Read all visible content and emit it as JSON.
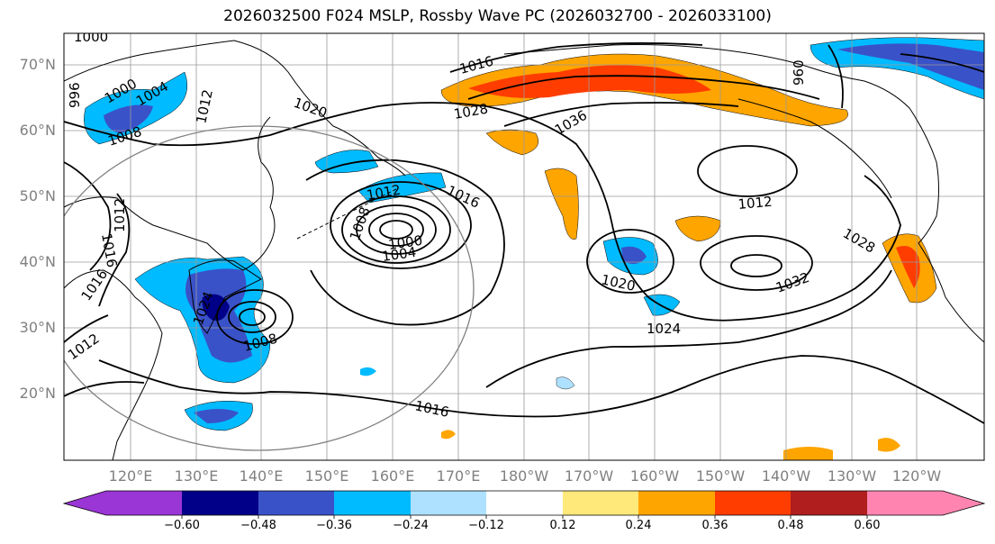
{
  "title": "2026032500 F024 MSLP, Rossby Wave PC (2026032700 - 2026033100)",
  "lat_labels": [
    "70°N",
    "60°N",
    "50°N",
    "40°N",
    "30°N",
    "20°N"
  ],
  "lon_labels": [
    "120°E",
    "130°E",
    "140°E",
    "150°E",
    "160°E",
    "170°E",
    "180°W",
    "170°W",
    "160°W",
    "150°W",
    "140°W",
    "130°W",
    "120°W"
  ],
  "contour_labels": [
    "1016",
    "1000",
    "1004",
    "1012",
    "1020",
    "1028",
    "1036",
    "1008",
    "1016",
    "1008",
    "1012",
    "1004",
    "1000",
    "1016",
    "1024",
    "1012",
    "1028",
    "1020",
    "1032",
    "1024",
    "1016",
    "1008",
    "1012",
    "996",
    "1012",
    "1016",
    "960",
    "1000"
  ],
  "colorbar": {
    "colors": [
      "#9a35d6",
      "#000088",
      "#3a52c8",
      "#00bbff",
      "#aee0ff",
      "#ffffff",
      "#ffe97a",
      "#ffa500",
      "#ff3d00",
      "#b01e1e",
      "#ff85b0"
    ],
    "tick_labels": [
      "−0.60",
      "−0.48",
      "−0.36",
      "−0.24",
      "−0.12",
      "0.12",
      "0.24",
      "0.36",
      "0.48",
      "0.60"
    ]
  }
}
